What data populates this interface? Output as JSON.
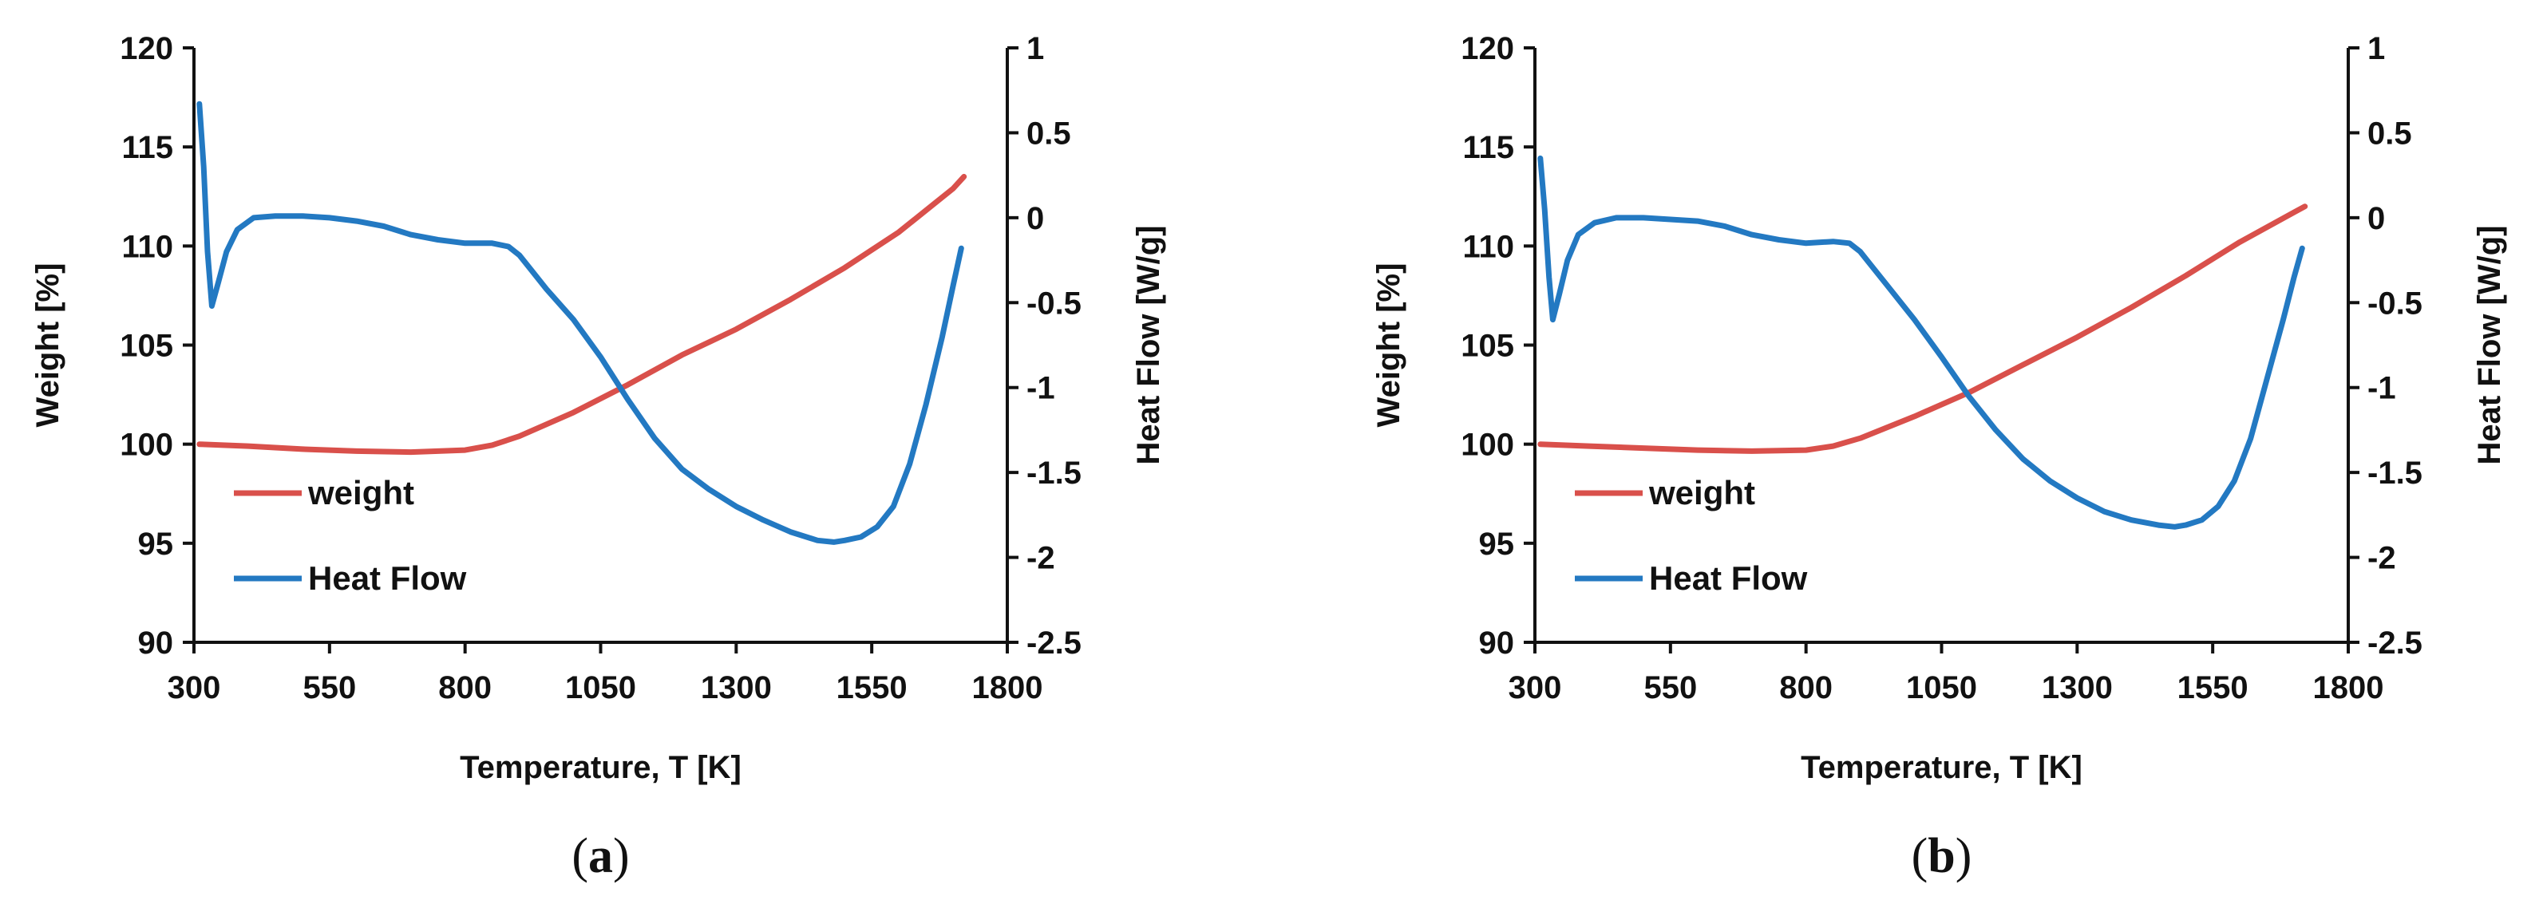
{
  "chart_data": [
    {
      "type": "line",
      "panel_label": "a",
      "xlabel": "Temperature, T [K]",
      "ylabel_left": "Weight [%]",
      "ylabel_right": "Heat Flow [W/g]",
      "xlim": [
        300,
        1800
      ],
      "ylim_left": [
        90,
        120
      ],
      "ylim_right": [
        -2.5,
        1
      ],
      "x_ticks": [
        "300",
        "550",
        "800",
        "1050",
        "1300",
        "1550",
        "1800"
      ],
      "y_left_ticks": [
        "90",
        "95",
        "100",
        "105",
        "110",
        "115",
        "120"
      ],
      "y_right_ticks": [
        "-2.5",
        "-2",
        "-1.5",
        "-1",
        "-0.5",
        "0",
        "0.5",
        "1"
      ],
      "legend": [
        "weight",
        "Heat Flow"
      ],
      "series": [
        {
          "name": "weight",
          "axis": "left",
          "color": "#d9504b",
          "x": [
            310,
            400,
            500,
            600,
            700,
            800,
            850,
            900,
            1000,
            1100,
            1200,
            1300,
            1400,
            1500,
            1600,
            1700,
            1720
          ],
          "y": [
            100.0,
            99.9,
            99.75,
            99.65,
            99.6,
            99.7,
            99.95,
            100.4,
            101.6,
            103.0,
            104.5,
            105.8,
            107.3,
            108.9,
            110.7,
            112.9,
            113.5
          ]
        },
        {
          "name": "Heat Flow",
          "axis": "right",
          "color": "#2379c2",
          "x": [
            310,
            318,
            325,
            333,
            345,
            360,
            380,
            410,
            450,
            500,
            550,
            600,
            650,
            700,
            750,
            800,
            850,
            880,
            900,
            920,
            950,
            1000,
            1050,
            1100,
            1150,
            1200,
            1250,
            1300,
            1350,
            1400,
            1450,
            1480,
            1500,
            1530,
            1560,
            1590,
            1620,
            1650,
            1680,
            1700,
            1715
          ],
          "y": [
            0.67,
            0.3,
            -0.2,
            -0.52,
            -0.38,
            -0.2,
            -0.07,
            0.0,
            0.01,
            0.01,
            0.0,
            -0.02,
            -0.05,
            -0.1,
            -0.13,
            -0.15,
            -0.15,
            -0.17,
            -0.22,
            -0.3,
            -0.42,
            -0.6,
            -0.82,
            -1.07,
            -1.3,
            -1.48,
            -1.6,
            -1.7,
            -1.78,
            -1.85,
            -1.9,
            -1.91,
            -1.9,
            -1.88,
            -1.82,
            -1.7,
            -1.45,
            -1.1,
            -0.7,
            -0.4,
            -0.18
          ]
        }
      ]
    },
    {
      "type": "line",
      "panel_label": "b",
      "xlabel": "Temperature, T [K]",
      "ylabel_left": "Weight [%]",
      "ylabel_right": "Heat Flow [W/g]",
      "xlim": [
        300,
        1800
      ],
      "ylim_left": [
        90,
        120
      ],
      "ylim_right": [
        -2.5,
        1
      ],
      "x_ticks": [
        "300",
        "550",
        "800",
        "1050",
        "1300",
        "1550",
        "1800"
      ],
      "y_left_ticks": [
        "90",
        "95",
        "100",
        "105",
        "110",
        "115",
        "120"
      ],
      "y_right_ticks": [
        "-2.5",
        "-2",
        "-1.5",
        "-1",
        "-0.5",
        "0",
        "0.5",
        "1"
      ],
      "legend": [
        "weight",
        "Heat Flow"
      ],
      "series": [
        {
          "name": "weight",
          "axis": "left",
          "color": "#d9504b",
          "x": [
            310,
            400,
            500,
            600,
            700,
            800,
            850,
            900,
            1000,
            1100,
            1200,
            1300,
            1400,
            1500,
            1600,
            1700,
            1720
          ],
          "y": [
            100.0,
            99.9,
            99.8,
            99.7,
            99.65,
            99.7,
            99.9,
            100.3,
            101.4,
            102.6,
            104.0,
            105.4,
            106.9,
            108.5,
            110.2,
            111.7,
            112.0
          ]
        },
        {
          "name": "Heat Flow",
          "axis": "right",
          "color": "#2379c2",
          "x": [
            310,
            318,
            326,
            333,
            345,
            360,
            380,
            410,
            450,
            500,
            550,
            600,
            650,
            700,
            750,
            800,
            850,
            880,
            900,
            920,
            950,
            1000,
            1050,
            1100,
            1150,
            1200,
            1250,
            1300,
            1350,
            1400,
            1450,
            1480,
            1500,
            1530,
            1560,
            1590,
            1620,
            1650,
            1680,
            1700,
            1715
          ],
          "y": [
            0.35,
            0.05,
            -0.35,
            -0.6,
            -0.45,
            -0.25,
            -0.1,
            -0.03,
            0.0,
            0.0,
            -0.01,
            -0.02,
            -0.05,
            -0.1,
            -0.13,
            -0.15,
            -0.14,
            -0.15,
            -0.2,
            -0.28,
            -0.4,
            -0.6,
            -0.82,
            -1.05,
            -1.25,
            -1.42,
            -1.55,
            -1.65,
            -1.73,
            -1.78,
            -1.81,
            -1.82,
            -1.81,
            -1.78,
            -1.7,
            -1.55,
            -1.3,
            -0.95,
            -0.6,
            -0.35,
            -0.18
          ]
        }
      ]
    }
  ]
}
